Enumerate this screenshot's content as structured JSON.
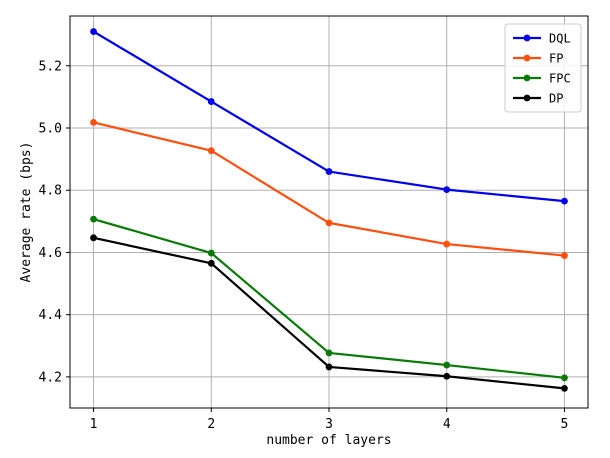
{
  "chart_data": {
    "type": "line",
    "xlabel": "number of layers",
    "ylabel": "Average rate (bps)",
    "x": [
      1,
      2,
      3,
      4,
      5
    ],
    "xlim": [
      0.8,
      5.2
    ],
    "ylim": [
      4.1,
      5.36
    ],
    "xticks": [
      1,
      2,
      3,
      4,
      5
    ],
    "yticks": [
      4.2,
      4.4,
      4.6,
      4.8,
      5.0,
      5.2
    ],
    "grid": true,
    "legend_position": "top-right",
    "series": [
      {
        "name": "DQL",
        "color": "#0000ee",
        "values": [
          5.31,
          5.085,
          4.86,
          4.802,
          4.765
        ]
      },
      {
        "name": "FP",
        "color": "#ff4f0f",
        "values": [
          5.018,
          4.927,
          4.695,
          4.627,
          4.59
        ]
      },
      {
        "name": "FPC",
        "color": "#087a08",
        "values": [
          4.707,
          4.598,
          4.277,
          4.238,
          4.197
        ]
      },
      {
        "name": "DP",
        "color": "#000000",
        "values": [
          4.647,
          4.565,
          4.232,
          4.202,
          4.163
        ]
      }
    ]
  }
}
